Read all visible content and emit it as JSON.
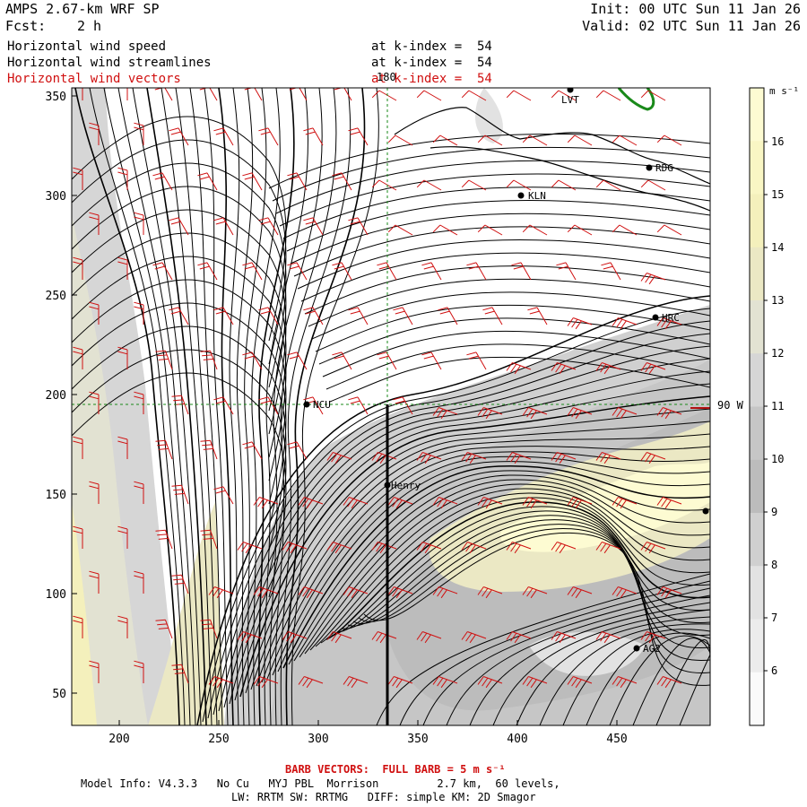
{
  "header": {
    "model": "AMPS 2.67-km WRF SP",
    "fcst_label": "Fcst:",
    "fcst_value": "2 h",
    "init": "Init: 00 UTC Sun 11 Jan 26",
    "valid": "Valid: 02 UTC Sun 11 Jan 26"
  },
  "fields": [
    {
      "name": "Horizontal wind speed",
      "level": "at k-index =  54",
      "color": "#000000"
    },
    {
      "name": "Horizontal wind streamlines",
      "level": "at k-index =  54",
      "color": "#000000"
    },
    {
      "name": "Horizontal wind vectors",
      "level": "at k-index =  54",
      "color": "#d01010"
    }
  ],
  "map": {
    "x_ticks": [
      "200",
      "250",
      "300",
      "350",
      "400",
      "450"
    ],
    "y_ticks": [
      "350",
      "300",
      "250",
      "200",
      "150",
      "100",
      "50"
    ],
    "meridian_label": "180",
    "parallel_label": "90 W",
    "stations": [
      {
        "id": "LVT",
        "label": "LVT"
      },
      {
        "id": "RDG",
        "label": "RDG"
      },
      {
        "id": "KLN",
        "label": "KLN"
      },
      {
        "id": "HRC",
        "label": "HRC"
      },
      {
        "id": "NCU",
        "label": "NCU"
      },
      {
        "id": "Henry",
        "label": "Henry"
      },
      {
        "id": "AG2",
        "label": "AG2"
      },
      {
        "id": "edge",
        "label": ""
      }
    ]
  },
  "colorbar": {
    "units": "m s⁻¹",
    "levels": [
      "16",
      "15",
      "14",
      "13",
      "12",
      "11",
      "10",
      "9",
      "8",
      "7",
      "6"
    ],
    "colors": [
      "#fdfbd2",
      "#f9f6c4",
      "#f4f0bc",
      "#ebe8c4",
      "#e2e2d2",
      "#d6d6d6",
      "#c6c6c6",
      "#bcbcbc",
      "#d0d0d0",
      "#e2e2e2",
      "#ececec",
      "#fafafa"
    ]
  },
  "footer": {
    "barb_note": "BARB VECTORS:  FULL BARB = 5 m s⁻¹",
    "model_info": "Model Info: V4.3.3   No Cu   MYJ PBL  Morrison         2.7 km,  60 levels,",
    "physics": "LW: RRTM SW: RRTMG   DIFF: simple KM: 2D Smagor"
  }
}
